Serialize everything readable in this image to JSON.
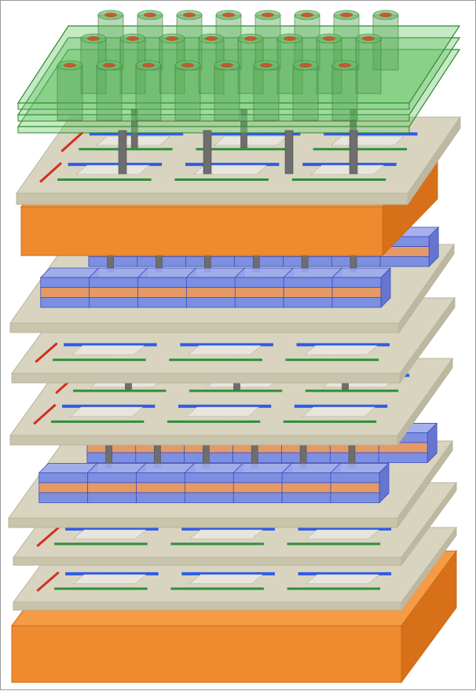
{
  "figure": {
    "description_type": "3D stacked integrated-circuit illustration",
    "layers_top_to_bottom": [
      {
        "kind": "green-sensor-array",
        "sheets": 3,
        "rows": 3,
        "cylinders_per_row": 8
      },
      {
        "kind": "logic-layer",
        "label_shown": false
      },
      {
        "kind": "substrate-orange"
      },
      {
        "kind": "memory-block-layer",
        "rows": 2,
        "blocks_per_row": 7
      },
      {
        "kind": "logic-layer"
      },
      {
        "kind": "logic-layer"
      },
      {
        "kind": "memory-block-layer",
        "rows": 2,
        "blocks_per_row": 7
      },
      {
        "kind": "logic-layer"
      },
      {
        "kind": "logic-layer"
      },
      {
        "kind": "substrate-orange"
      }
    ]
  },
  "colors": {
    "substrate_orange": "#F08A2E",
    "substrate_orange_side": "#D8701A",
    "plate_beige": "#D8D4C0",
    "plate_beige_edge": "#B9B49D",
    "sensor_green": "#5BBF5B",
    "sensor_cap_red": "#C8502E",
    "wire_blue": "#2E5BE8",
    "wire_green": "#2F8F3A",
    "wire_red": "#D03020",
    "via_gray": "#6E6E6E",
    "block_blue": "#7D8FE0",
    "block_orange": "#E39A66"
  }
}
